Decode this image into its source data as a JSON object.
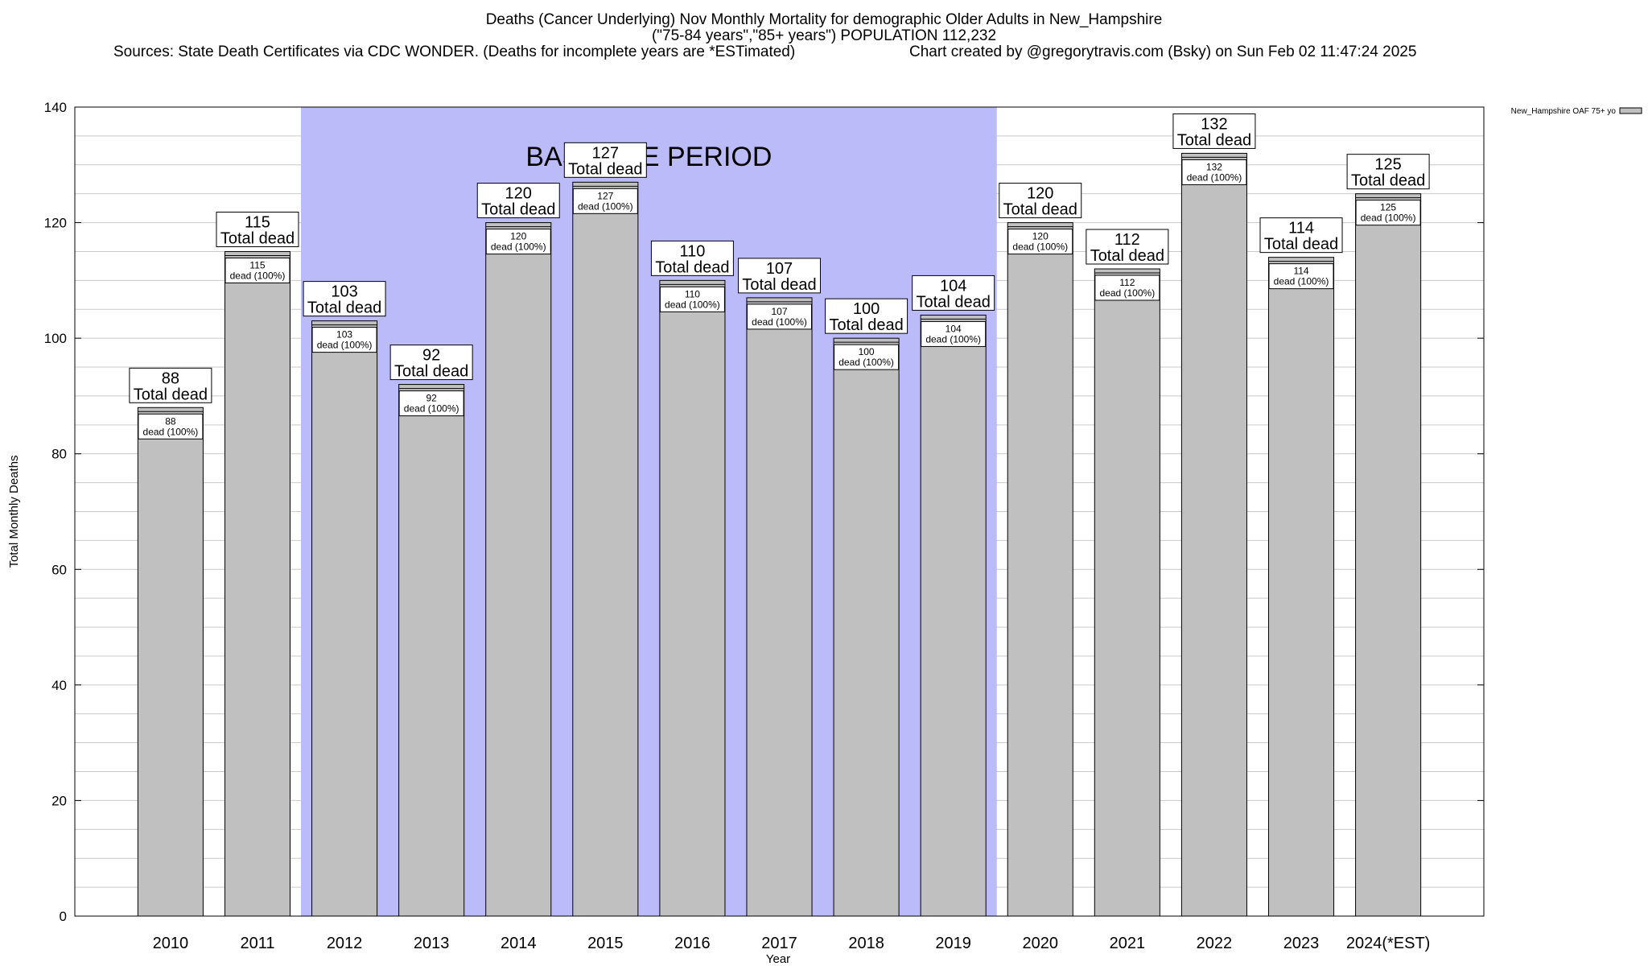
{
  "chart_data": {
    "type": "bar",
    "title": "Deaths (Cancer Underlying) Nov Monthly Mortality for demographic Older Adults in New_Hampshire",
    "subtitle": "(\"75-84 years\",\"85+ years\") POPULATION 112,232",
    "sources": "Sources: State Death Certificates via CDC WONDER. (Deaths for incomplete years are *ESTimated)",
    "credit": "Chart created by @gregorytravis.com (Bsky) on Sun Feb 02 11:47:24 2025",
    "xlabel": "Year",
    "ylabel": "Total Monthly Deaths",
    "ylim": [
      0,
      140
    ],
    "y_ticks": [
      0,
      20,
      40,
      60,
      80,
      100,
      120,
      140
    ],
    "grid": true,
    "categories": [
      "2010",
      "2011",
      "2012",
      "2013",
      "2014",
      "2015",
      "2016",
      "2017",
      "2018",
      "2019",
      "2020",
      "2021",
      "2022",
      "2023",
      "2024(*EST)"
    ],
    "series": [
      {
        "name": "New_Hampshire OAF 75+ yo",
        "values": [
          88,
          115,
          103,
          92,
          120,
          127,
          110,
          107,
          100,
          104,
          120,
          112,
          132,
          114,
          125
        ],
        "color": "#c0c0c0"
      }
    ],
    "top_label_suffix": "Total dead",
    "inner_label_suffix": "dead (100%)",
    "legend_position": "top-right",
    "baseline_period": {
      "label": "BASELINE PERIOD",
      "start_category": "2012",
      "end_category": "2019",
      "color": "#bbbbfa"
    }
  }
}
